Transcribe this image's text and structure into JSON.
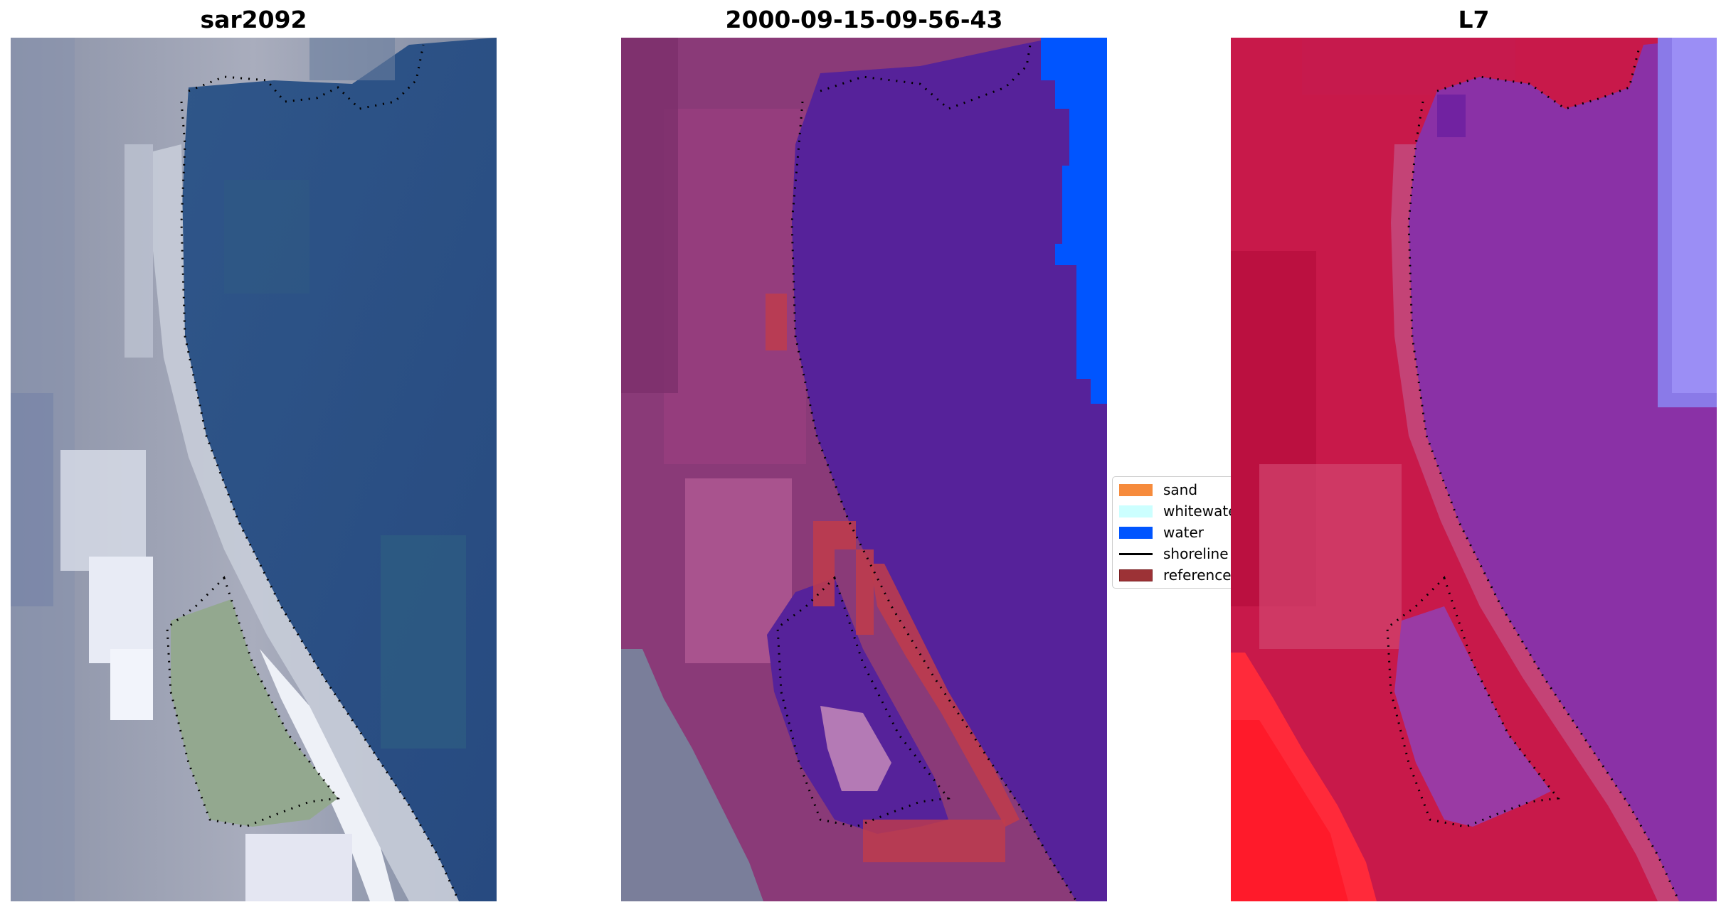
{
  "panels": [
    {
      "title": "sar2092",
      "image": "satellite true-color image of coastline"
    },
    {
      "title": "2000-09-15-09-56-43",
      "image": "classified image with sand, whitewater, water and reference overlay"
    },
    {
      "title": "L7",
      "image": "false-color Landsat 7 image of coastline"
    }
  ],
  "legend": {
    "items": [
      {
        "label": "sand",
        "color": "#f68b3c"
      },
      {
        "label": "whitewater",
        "color": "#ccffff"
      },
      {
        "label": "water",
        "color": "#0055ff"
      },
      {
        "label": "shoreline",
        "color": "#000000"
      },
      {
        "label": "reference",
        "color": "#9c3236"
      }
    ]
  }
}
